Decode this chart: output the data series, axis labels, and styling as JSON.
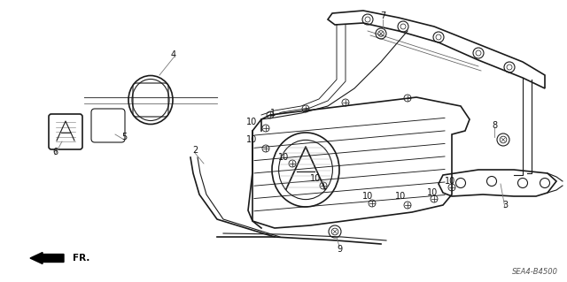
{
  "bg_color": "#ffffff",
  "fig_width": 6.4,
  "fig_height": 3.19,
  "dpi": 100,
  "diagram_code_ref": "SEA4-B4500",
  "font_size_labels": 7,
  "font_size_ref": 6,
  "line_color": "#1a1a1a",
  "label_color": "#111111"
}
